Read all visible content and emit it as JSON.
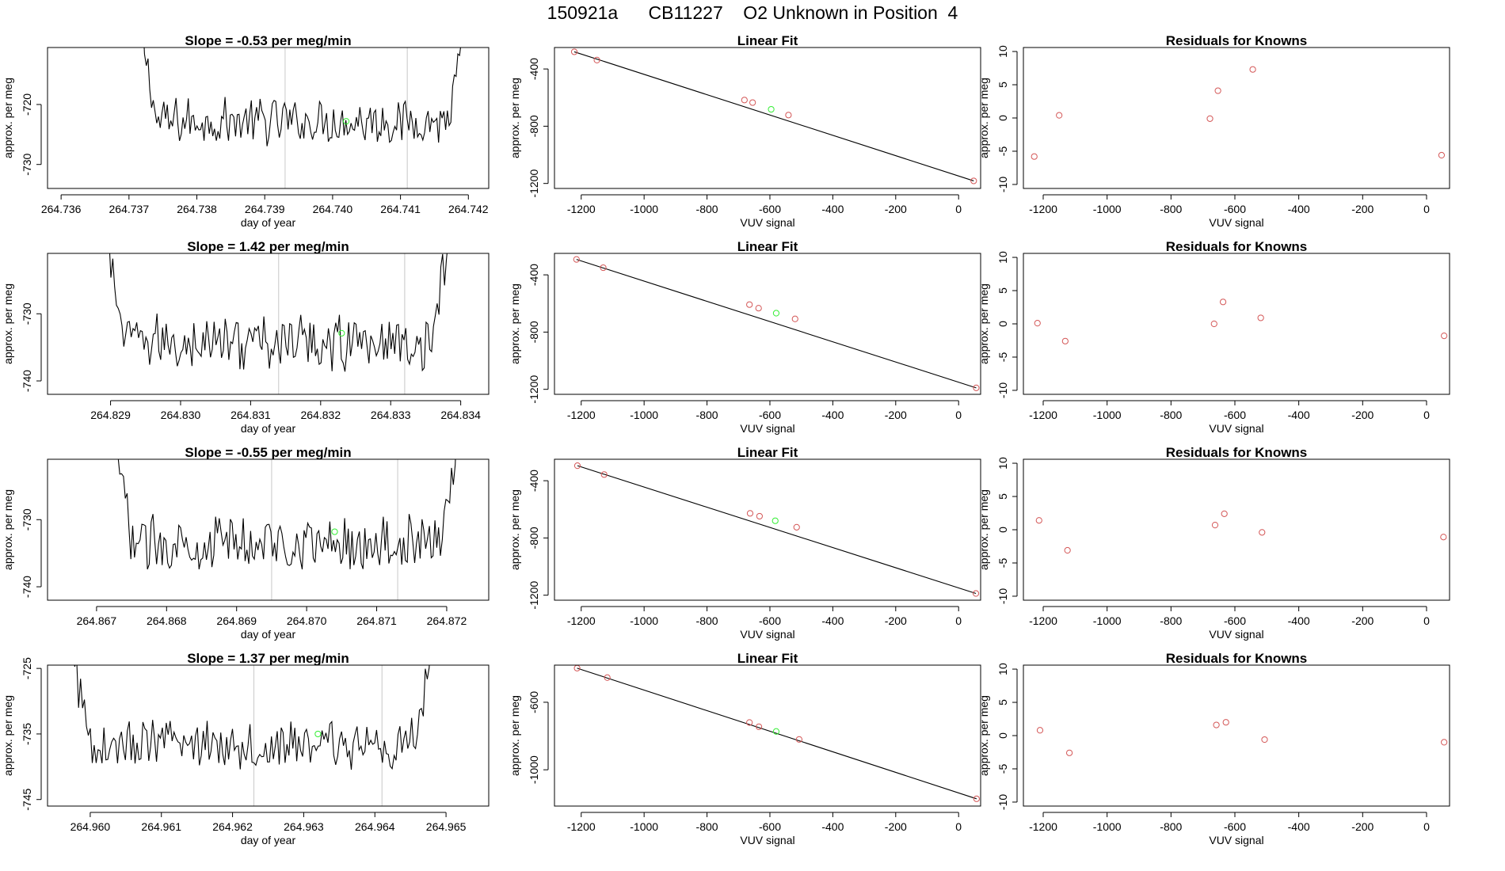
{
  "figure": {
    "title": "150921a      CB11227    O2 Unknown in Position  4"
  },
  "colors": {
    "line": "#000000",
    "known_point": "#d45757",
    "unknown_point": "#33ee33",
    "vline": "#c8c8c8"
  },
  "chart_data": [
    {
      "type": "line",
      "row": 1,
      "title": "Slope =  -0.53  per meg/min",
      "xlabel": "day of year",
      "ylabel": "approx. per meg",
      "xlim": [
        264.7358,
        264.7423
      ],
      "ylim": [
        -734,
        -710.5
      ],
      "xticks": [
        "264.736",
        "264.737",
        "264.738",
        "264.739",
        "264.740",
        "264.741",
        "264.742"
      ],
      "xtick_values": [
        264.736,
        264.737,
        264.738,
        264.739,
        264.74,
        264.741,
        264.742
      ],
      "yticks": [
        "-730",
        "-720"
      ],
      "ytick_values": [
        -730,
        -720
      ],
      "trace_start": 264.7371,
      "trace_end": 264.742,
      "trace_mean": -722.8,
      "trace_amp": 2.4,
      "edge_rise_left": 28,
      "edge_rise_right": 22,
      "vlines": [
        264.7393,
        264.7411
      ],
      "unknown_point": {
        "x": 264.7402,
        "y": -722.8
      }
    },
    {
      "type": "line",
      "row": 2,
      "title": "Slope =  1.42  per meg/min",
      "xlabel": "day of year",
      "ylabel": "approx. per meg",
      "xlim": [
        264.8281,
        264.8344
      ],
      "ylim": [
        -742,
        -721
      ],
      "xticks": [
        "264.829",
        "264.830",
        "264.831",
        "264.832",
        "264.833",
        "264.834"
      ],
      "xtick_values": [
        264.829,
        264.83,
        264.831,
        264.832,
        264.833,
        264.834
      ],
      "yticks": [
        "-740",
        "-730"
      ],
      "ytick_values": [
        -740,
        -730
      ],
      "trace_start": 264.8289,
      "trace_end": 264.8339,
      "trace_mean": -734.2,
      "trace_amp": 2.6,
      "edge_rise_left": 22,
      "edge_rise_right": 24,
      "vlines": [
        264.8314,
        264.8332
      ],
      "unknown_point": {
        "x": 264.8323,
        "y": -732.9
      }
    },
    {
      "type": "line",
      "row": 3,
      "title": "Slope =  -0.55  per meg/min",
      "xlabel": "day of year",
      "ylabel": "approx. per meg",
      "xlim": [
        264.8663,
        264.8726
      ],
      "ylim": [
        -742,
        -721
      ],
      "xticks": [
        "264.867",
        "264.868",
        "264.869",
        "264.870",
        "264.871",
        "264.872"
      ],
      "xtick_values": [
        264.867,
        264.868,
        264.869,
        264.87,
        264.871,
        264.872
      ],
      "yticks": [
        "-740",
        "-730"
      ],
      "ytick_values": [
        -740,
        -730
      ],
      "trace_start": 264.8672,
      "trace_end": 264.8722,
      "trace_mean": -733.5,
      "trace_amp": 2.5,
      "edge_rise_left": 24,
      "edge_rise_right": 22,
      "vlines": [
        264.8695,
        264.8713
      ],
      "unknown_point": {
        "x": 264.8704,
        "y": -731.8
      }
    },
    {
      "type": "line",
      "row": 4,
      "title": "Slope =  1.37  per meg/min",
      "xlabel": "day of year",
      "ylabel": "approx. per meg",
      "xlim": [
        264.9594,
        264.9656
      ],
      "ylim": [
        -746,
        -724.5
      ],
      "xticks": [
        "264.960",
        "264.961",
        "264.962",
        "264.963",
        "264.964",
        "264.965"
      ],
      "xtick_values": [
        264.96,
        264.961,
        264.962,
        264.963,
        264.964,
        264.965
      ],
      "yticks": [
        "-745",
        "-735",
        "-725"
      ],
      "ytick_values": [
        -745,
        -735,
        -725
      ],
      "trace_start": 264.9597,
      "trace_end": 264.9649,
      "trace_mean": -736.6,
      "trace_amp": 2.4,
      "edge_rise_left": 20,
      "edge_rise_right": 30,
      "vlines": [
        264.9623,
        264.9641
      ],
      "unknown_point": {
        "x": 264.9632,
        "y": -735.0
      }
    },
    {
      "type": "scatter",
      "row": 1,
      "title": "Linear Fit",
      "xlabel": "VUV signal",
      "ylabel": "approx. per meg",
      "xlim": [
        -1285,
        70
      ],
      "ylim": [
        -1235,
        -250
      ],
      "xticks": [
        "-1200",
        "-1000",
        "-800",
        "-600",
        "-400",
        "-200",
        "0"
      ],
      "xtick_values": [
        -1200,
        -1000,
        -800,
        -600,
        -400,
        -200,
        0
      ],
      "yticks": [
        "-1200",
        "-800",
        "-400"
      ],
      "ytick_values": [
        -1200,
        -800,
        -400
      ],
      "fit": {
        "x1": -1222,
        "y1": -280,
        "x2": 48,
        "y2": -1182
      },
      "known_points": [
        [
          -1222,
          -280
        ],
        [
          -1150,
          -338
        ],
        [
          -681,
          -617
        ],
        [
          -655,
          -635
        ],
        [
          -541,
          -722
        ],
        [
          48,
          -1182
        ]
      ],
      "unknown_points": [
        [
          -596,
          -682
        ]
      ]
    },
    {
      "type": "scatter",
      "row": 2,
      "title": "Linear Fit",
      "xlabel": "VUV signal",
      "ylabel": "approx. per meg",
      "xlim": [
        -1285,
        70
      ],
      "ylim": [
        -1235,
        -250
      ],
      "xticks": [
        "-1200",
        "-1000",
        "-800",
        "-600",
        "-400",
        "-200",
        "0"
      ],
      "xtick_values": [
        -1200,
        -1000,
        -800,
        -600,
        -400,
        -200,
        0
      ],
      "yticks": [
        "-1200",
        "-800",
        "-400"
      ],
      "ytick_values": [
        -1200,
        -800,
        -400
      ],
      "fit": {
        "x1": -1215,
        "y1": -292,
        "x2": 56,
        "y2": -1190
      },
      "known_points": [
        [
          -1215,
          -292
        ],
        [
          -1130,
          -350
        ],
        [
          -665,
          -608
        ],
        [
          -636,
          -633
        ],
        [
          -520,
          -708
        ],
        [
          56,
          -1190
        ]
      ],
      "unknown_points": [
        [
          -580,
          -668
        ]
      ]
    },
    {
      "type": "scatter",
      "row": 3,
      "title": "Linear Fit",
      "xlabel": "VUV signal",
      "ylabel": "approx. per meg",
      "xlim": [
        -1285,
        70
      ],
      "ylim": [
        -1235,
        -250
      ],
      "xticks": [
        "-1200",
        "-1000",
        "-800",
        "-600",
        "-400",
        "-200",
        "0"
      ],
      "xtick_values": [
        -1200,
        -1000,
        -800,
        -600,
        -400,
        -200,
        0
      ],
      "yticks": [
        "-1200",
        "-800",
        "-400"
      ],
      "ytick_values": [
        -1200,
        -800,
        -400
      ],
      "fit": {
        "x1": -1212,
        "y1": -295,
        "x2": 55,
        "y2": -1188
      },
      "known_points": [
        [
          -1212,
          -295
        ],
        [
          -1127,
          -357
        ],
        [
          -663,
          -628
        ],
        [
          -633,
          -648
        ],
        [
          -515,
          -725
        ],
        [
          55,
          -1188
        ]
      ],
      "unknown_points": [
        [
          -583,
          -680
        ]
      ]
    },
    {
      "type": "scatter",
      "row": 4,
      "title": "Linear Fit",
      "xlabel": "VUV signal",
      "ylabel": "approx. per meg",
      "xlim": [
        -1285,
        70
      ],
      "ylim": [
        -1215,
        -380
      ],
      "xticks": [
        "-1200",
        "-1000",
        "-800",
        "-600",
        "-400",
        "-200",
        "0"
      ],
      "xtick_values": [
        -1200,
        -1000,
        -800,
        -600,
        -400,
        -200,
        0
      ],
      "yticks": [
        "-1000",
        "-600"
      ],
      "ytick_values": [
        -1000,
        -600
      ],
      "fit": {
        "x1": -1213,
        "y1": -398,
        "x2": 57,
        "y2": -1172
      },
      "known_points": [
        [
          -1213,
          -398
        ],
        [
          -1117,
          -454
        ],
        [
          -665,
          -720
        ],
        [
          -635,
          -745
        ],
        [
          -507,
          -820
        ],
        [
          57,
          -1172
        ]
      ],
      "unknown_points": [
        [
          -580,
          -773
        ]
      ]
    },
    {
      "type": "scatter",
      "row": 1,
      "title": "Residuals for Knowns",
      "xlabel": "VUV signal",
      "ylabel": "approx. per meg",
      "xlim": [
        -1262,
        72
      ],
      "ylim": [
        -10.6,
        10.6
      ],
      "xticks": [
        "-1200",
        "-1000",
        "-800",
        "-600",
        "-400",
        "-200",
        "0"
      ],
      "xtick_values": [
        -1200,
        -1000,
        -800,
        -600,
        -400,
        -200,
        0
      ],
      "yticks": [
        "-10",
        "-5",
        "0",
        "5",
        "10"
      ],
      "ytick_values": [
        -10,
        -5,
        0,
        5,
        10
      ],
      "known_points": [
        [
          -1228,
          -5.8
        ],
        [
          -1150,
          0.4
        ],
        [
          -678,
          -0.1
        ],
        [
          -653,
          4.1
        ],
        [
          -544,
          7.3
        ],
        [
          47,
          -5.6
        ]
      ]
    },
    {
      "type": "scatter",
      "row": 2,
      "title": "Residuals for Knowns",
      "xlabel": "VUV signal",
      "ylabel": "approx. per meg",
      "xlim": [
        -1262,
        72
      ],
      "ylim": [
        -10.6,
        10.6
      ],
      "xticks": [
        "-1200",
        "-1000",
        "-800",
        "-600",
        "-400",
        "-200",
        "0"
      ],
      "xtick_values": [
        -1200,
        -1000,
        -800,
        -600,
        -400,
        -200,
        0
      ],
      "yticks": [
        "-10",
        "-5",
        "0",
        "5",
        "10"
      ],
      "ytick_values": [
        -10,
        -5,
        0,
        5,
        10
      ],
      "known_points": [
        [
          -1218,
          0.1
        ],
        [
          -1131,
          -2.6
        ],
        [
          -665,
          0.0
        ],
        [
          -637,
          3.3
        ],
        [
          -519,
          0.9
        ],
        [
          55,
          -1.8
        ]
      ]
    },
    {
      "type": "scatter",
      "row": 3,
      "title": "Residuals for Knowns",
      "xlabel": "VUV signal",
      "ylabel": "approx. per meg",
      "xlim": [
        -1262,
        72
      ],
      "ylim": [
        -10.6,
        10.6
      ],
      "xticks": [
        "-1200",
        "-1000",
        "-800",
        "-600",
        "-400",
        "-200",
        "0"
      ],
      "xtick_values": [
        -1200,
        -1000,
        -800,
        -600,
        -400,
        -200,
        0
      ],
      "yticks": [
        "-10",
        "-5",
        "0",
        "5",
        "10"
      ],
      "ytick_values": [
        -10,
        -5,
        0,
        5,
        10
      ],
      "known_points": [
        [
          -1213,
          1.4
        ],
        [
          -1124,
          -3.1
        ],
        [
          -662,
          0.7
        ],
        [
          -633,
          2.4
        ],
        [
          -515,
          -0.4
        ],
        [
          53,
          -1.1
        ]
      ]
    },
    {
      "type": "scatter",
      "row": 4,
      "title": "Residuals for Knowns",
      "xlabel": "VUV signal",
      "ylabel": "approx. per meg",
      "xlim": [
        -1262,
        72
      ],
      "ylim": [
        -10.6,
        10.6
      ],
      "xticks": [
        "-1200",
        "-1000",
        "-800",
        "-600",
        "-400",
        "-200",
        "0"
      ],
      "xtick_values": [
        -1200,
        -1000,
        -800,
        -600,
        -400,
        -200,
        0
      ],
      "yticks": [
        "-10",
        "-5",
        "0",
        "5",
        "10"
      ],
      "ytick_values": [
        -10,
        -5,
        0,
        5,
        10
      ],
      "known_points": [
        [
          -1210,
          0.8
        ],
        [
          -1118,
          -2.6
        ],
        [
          -658,
          1.6
        ],
        [
          -628,
          2.0
        ],
        [
          -507,
          -0.6
        ],
        [
          55,
          -1.0
        ]
      ]
    }
  ]
}
